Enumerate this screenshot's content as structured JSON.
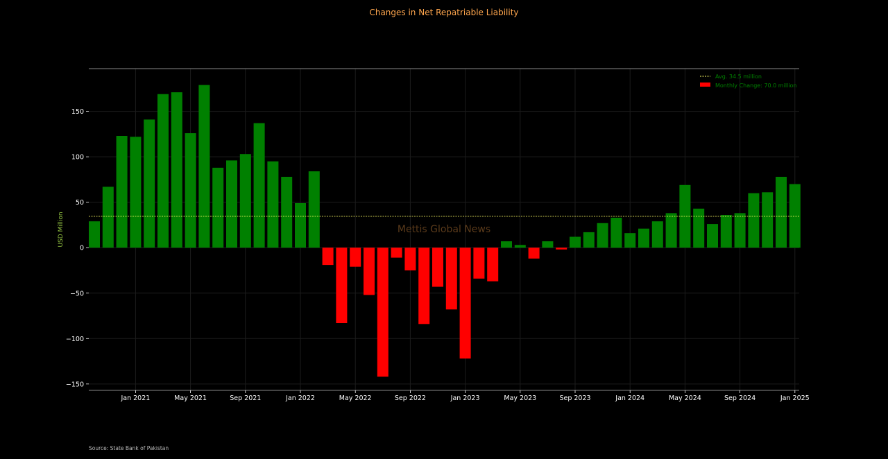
{
  "chart_data": {
    "type": "bar",
    "title": "Changes in Net Repatriable Liability",
    "ylabel": "USD Million",
    "source": "Source: State Bank of Pakistan",
    "watermark": "Mettis Global News",
    "ylim": [
      -157,
      197
    ],
    "yticks": [
      -150,
      -100,
      -50,
      0,
      50,
      100,
      150
    ],
    "ytick_labels": [
      "−150",
      "−100",
      "−50",
      "0",
      "50",
      "100",
      "150"
    ],
    "x_start_month": "2020-10",
    "xticks": [
      {
        "month": "2021-01",
        "label": "Jan 2021"
      },
      {
        "month": "2021-05",
        "label": "May 2021"
      },
      {
        "month": "2021-09",
        "label": "Sep 2021"
      },
      {
        "month": "2022-01",
        "label": "Jan 2022"
      },
      {
        "month": "2022-05",
        "label": "May 2022"
      },
      {
        "month": "2022-09",
        "label": "Sep 2022"
      },
      {
        "month": "2023-01",
        "label": "Jan 2023"
      },
      {
        "month": "2023-05",
        "label": "May 2023"
      },
      {
        "month": "2023-09",
        "label": "Sep 2023"
      },
      {
        "month": "2024-01",
        "label": "Jan 2024"
      },
      {
        "month": "2024-05",
        "label": "May 2024"
      },
      {
        "month": "2024-09",
        "label": "Sep 2024"
      },
      {
        "month": "2025-01",
        "label": "Jan 2025"
      }
    ],
    "values": [
      29,
      67,
      123,
      122,
      141,
      169,
      171,
      126,
      179,
      88,
      96,
      103,
      137,
      95,
      78,
      49,
      84,
      -19,
      -83,
      -21,
      -52,
      -142,
      -11,
      -25,
      -84,
      -43,
      -68,
      -122,
      -34,
      -37,
      7,
      3,
      -12,
      7,
      -2,
      12,
      17,
      27,
      33,
      16,
      21,
      29,
      38,
      69,
      43,
      26,
      36,
      38,
      60,
      61,
      78,
      70
    ],
    "average": 34.5,
    "legend": {
      "position": "top-right",
      "items": [
        {
          "label": "Avg. 34.5 million",
          "kind": "line"
        },
        {
          "label": "Monthly Change: 70.0 million",
          "kind": "patch"
        }
      ]
    },
    "colors": {
      "positive": "#008000",
      "negative": "#ff0000",
      "average": "#ffff66",
      "title": "#ffa64d",
      "ylabel": "#90c040",
      "legend_text": "#008000",
      "axis": "#888888",
      "grid": "#1c1c1c",
      "watermark": "#5a3a1a"
    },
    "grid": true
  }
}
